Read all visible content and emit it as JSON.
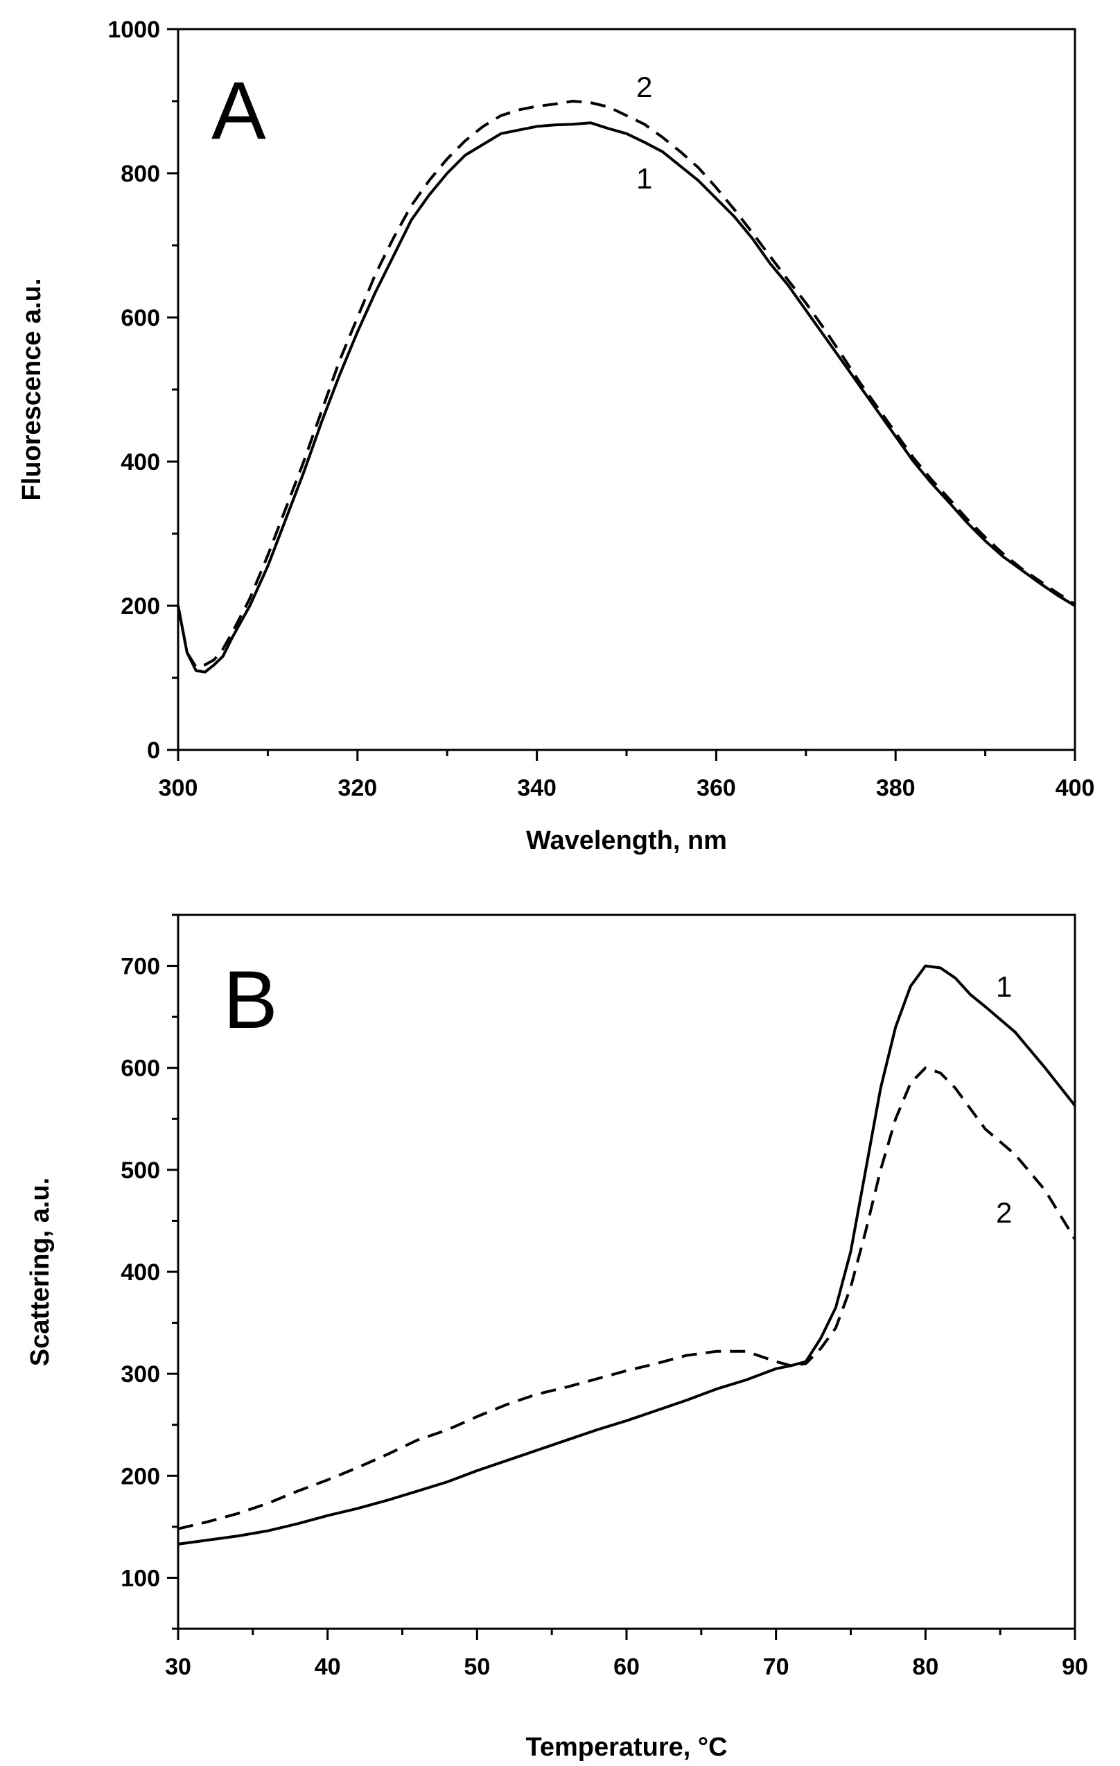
{
  "chart_data": [
    {
      "type": "line",
      "panel_label": "A",
      "title": "",
      "xlabel": "Wavelength, nm",
      "ylabel": "Fluorescence a.u.",
      "xlim": [
        300,
        400
      ],
      "ylim": [
        0,
        1000
      ],
      "x_major_ticks": [
        300,
        320,
        340,
        360,
        380,
        400
      ],
      "y_major_ticks": [
        0,
        200,
        400,
        600,
        800,
        1000
      ],
      "x_tick_labels": [
        "300",
        "320",
        "340",
        "360",
        "380",
        "400"
      ],
      "y_tick_labels": [
        "0",
        "200",
        "400",
        "600",
        "800",
        "1000"
      ],
      "minor_step_x": 10,
      "minor_step_y": 100,
      "grid": false,
      "series": [
        {
          "name": "1",
          "style": "solid",
          "color": "#000000",
          "x": [
            300,
            301,
            302,
            303,
            304,
            305,
            306,
            308,
            310,
            312,
            314,
            316,
            318,
            320,
            322,
            324,
            326,
            328,
            330,
            332,
            334,
            336,
            338,
            340,
            342,
            344,
            346,
            348,
            350,
            352,
            354,
            356,
            358,
            360,
            362,
            364,
            366,
            368,
            370,
            372,
            374,
            376,
            378,
            380,
            382,
            384,
            386,
            388,
            390,
            392,
            394,
            396,
            398,
            400
          ],
          "y": [
            200,
            135,
            110,
            108,
            118,
            130,
            155,
            200,
            255,
            320,
            385,
            455,
            520,
            580,
            635,
            685,
            735,
            770,
            800,
            825,
            840,
            855,
            860,
            865,
            867,
            868,
            870,
            862,
            855,
            843,
            830,
            810,
            790,
            765,
            740,
            710,
            675,
            645,
            610,
            575,
            540,
            505,
            470,
            435,
            400,
            370,
            343,
            315,
            290,
            268,
            250,
            232,
            215,
            200
          ],
          "label_position": "near-peak-below"
        },
        {
          "name": "2",
          "style": "dashed",
          "color": "#000000",
          "x": [
            300,
            301,
            302,
            303,
            304,
            305,
            306,
            308,
            310,
            312,
            314,
            316,
            318,
            320,
            322,
            324,
            326,
            328,
            330,
            332,
            334,
            336,
            338,
            340,
            342,
            344,
            346,
            348,
            350,
            352,
            354,
            356,
            358,
            360,
            362,
            364,
            366,
            368,
            370,
            372,
            374,
            376,
            378,
            380,
            382,
            384,
            386,
            388,
            390,
            392,
            394,
            396,
            398,
            400
          ],
          "y": [
            200,
            135,
            115,
            118,
            125,
            140,
            162,
            210,
            270,
            335,
            400,
            470,
            540,
            600,
            660,
            710,
            755,
            790,
            820,
            845,
            865,
            880,
            888,
            893,
            896,
            900,
            898,
            892,
            880,
            868,
            850,
            830,
            808,
            780,
            750,
            718,
            685,
            652,
            620,
            585,
            548,
            510,
            475,
            440,
            405,
            375,
            348,
            320,
            295,
            272,
            252,
            235,
            218,
            202
          ],
          "label_position": "near-peak-above"
        }
      ]
    },
    {
      "type": "line",
      "panel_label": "B",
      "title": "",
      "xlabel": "Temperature, °C",
      "ylabel": "Scattering, a.u.",
      "xlim": [
        30,
        90
      ],
      "ylim": [
        50,
        750
      ],
      "x_major_ticks": [
        30,
        40,
        50,
        60,
        70,
        80,
        90
      ],
      "y_major_ticks": [
        100,
        200,
        300,
        400,
        500,
        600,
        700
      ],
      "x_tick_labels": [
        "30",
        "40",
        "50",
        "60",
        "70",
        "80",
        "90"
      ],
      "y_tick_labels": [
        "100",
        "200",
        "300",
        "400",
        "500",
        "600",
        "700"
      ],
      "minor_step_x": 5,
      "minor_step_y": 50,
      "grid": false,
      "series": [
        {
          "name": "1",
          "style": "solid",
          "color": "#000000",
          "x": [
            30,
            32,
            34,
            36,
            38,
            40,
            42,
            44,
            46,
            48,
            50,
            52,
            54,
            56,
            58,
            60,
            62,
            64,
            66,
            68,
            70,
            71,
            72,
            73,
            74,
            75,
            76,
            77,
            78,
            79,
            80,
            81,
            82,
            83,
            84,
            86,
            88,
            90
          ],
          "y": [
            133,
            137,
            141,
            146,
            153,
            161,
            168,
            176,
            185,
            194,
            205,
            215,
            225,
            235,
            245,
            254,
            264,
            274,
            285,
            294,
            305,
            308,
            312,
            335,
            365,
            420,
            500,
            580,
            640,
            680,
            700,
            698,
            688,
            672,
            660,
            635,
            600,
            563
          ],
          "label_position": "right-above"
        },
        {
          "name": "2",
          "style": "dashed",
          "color": "#000000",
          "x": [
            30,
            32,
            34,
            36,
            38,
            40,
            42,
            44,
            46,
            48,
            50,
            52,
            54,
            56,
            58,
            60,
            62,
            64,
            66,
            68,
            70,
            71,
            72,
            73,
            74,
            75,
            76,
            77,
            78,
            79,
            80,
            81,
            82,
            83,
            84,
            86,
            88,
            90
          ],
          "y": [
            148,
            155,
            163,
            173,
            185,
            196,
            208,
            221,
            235,
            245,
            258,
            270,
            280,
            287,
            295,
            303,
            310,
            318,
            322,
            322,
            312,
            308,
            310,
            325,
            345,
            385,
            440,
            500,
            550,
            585,
            600,
            595,
            580,
            560,
            540,
            515,
            480,
            432
          ],
          "label_position": "right-below"
        }
      ]
    }
  ]
}
